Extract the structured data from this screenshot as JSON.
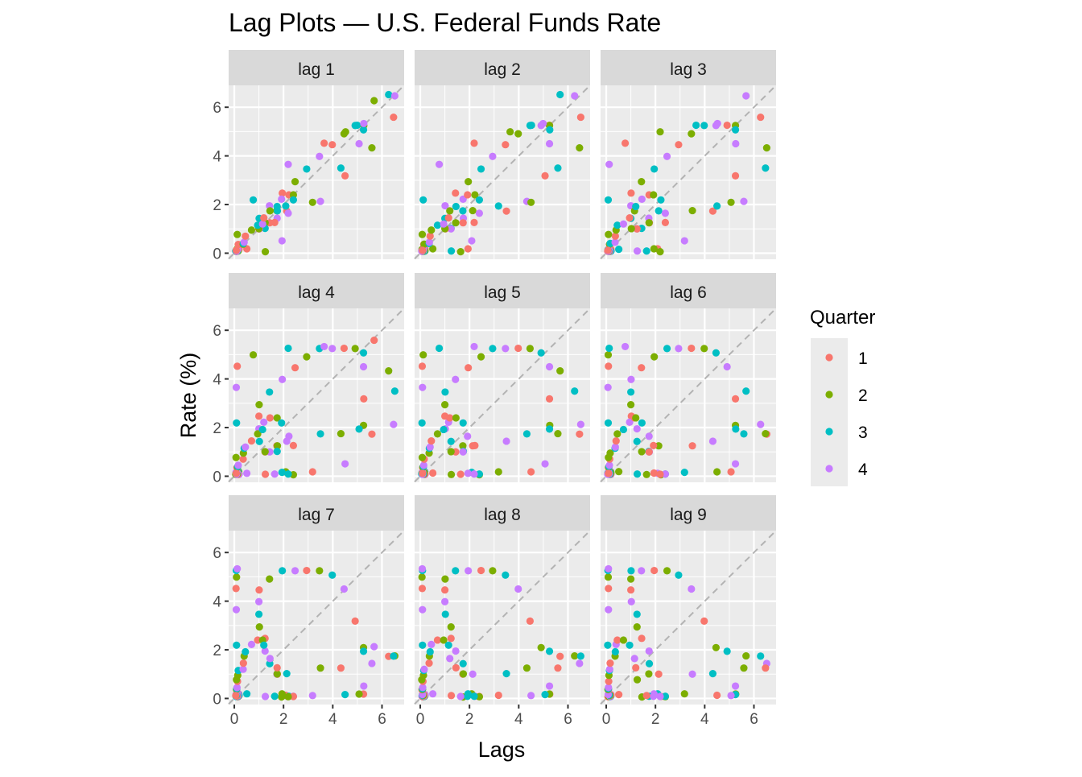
{
  "chart_data": {
    "type": "scatter",
    "title": "Lag Plots — U.S. Federal Funds Rate",
    "xlabel": "Lags",
    "ylabel": "Rate (%)",
    "xlim": [
      -0.23,
      6.9
    ],
    "ylim": [
      -0.25,
      6.9
    ],
    "x_ticks": [
      0,
      2,
      4,
      6
    ],
    "y_ticks": [
      0,
      2,
      4,
      6
    ],
    "grid": true,
    "reference_line": "y = x (dashed)",
    "facets": [
      "lag 1",
      "lag 2",
      "lag 3",
      "lag 4",
      "lag 5",
      "lag 6",
      "lag 7",
      "lag 8",
      "lag 9"
    ],
    "lags": [
      1,
      2,
      3,
      4,
      5,
      6,
      7,
      8,
      9
    ],
    "legend": {
      "title": "Quarter",
      "placement": "right",
      "entries": [
        "1",
        "2",
        "3",
        "4"
      ],
      "colors": [
        "#F8766D",
        "#7CAE00",
        "#00BFC4",
        "#C77CFF"
      ]
    },
    "series_start_quarter": 1,
    "series_values": [
      5.68,
      6.27,
      6.52,
      6.47,
      5.59,
      4.33,
      3.5,
      2.13,
      1.73,
      1.75,
      1.74,
      1.44,
      1.25,
      1.25,
      1.02,
      1.0,
      1.0,
      1.01,
      1.43,
      1.95,
      2.47,
      2.94,
      3.46,
      3.98,
      4.46,
      4.91,
      5.25,
      5.25,
      5.26,
      5.25,
      5.07,
      4.5,
      3.18,
      2.09,
      1.94,
      0.51,
      0.18,
      0.18,
      0.16,
      0.12,
      0.13,
      0.19,
      0.19,
      0.19,
      0.16,
      0.09,
      0.08,
      0.07,
      0.1,
      0.15,
      0.14,
      0.16,
      0.14,
      0.12,
      0.08,
      0.09,
      0.07,
      0.09,
      0.09,
      0.1,
      0.11,
      0.13,
      0.14,
      0.16,
      0.36,
      0.37,
      0.4,
      0.45,
      0.7,
      0.95,
      1.15,
      1.2,
      1.45,
      1.74,
      1.92,
      2.22,
      2.4,
      2.4,
      2.19,
      1.64,
      1.26,
      0.06,
      0.09,
      0.09,
      0.08,
      0.07,
      0.09,
      0.08,
      0.12,
      0.77,
      2.19,
      3.65,
      4.52,
      4.99,
      5.26,
      5.33
    ]
  }
}
